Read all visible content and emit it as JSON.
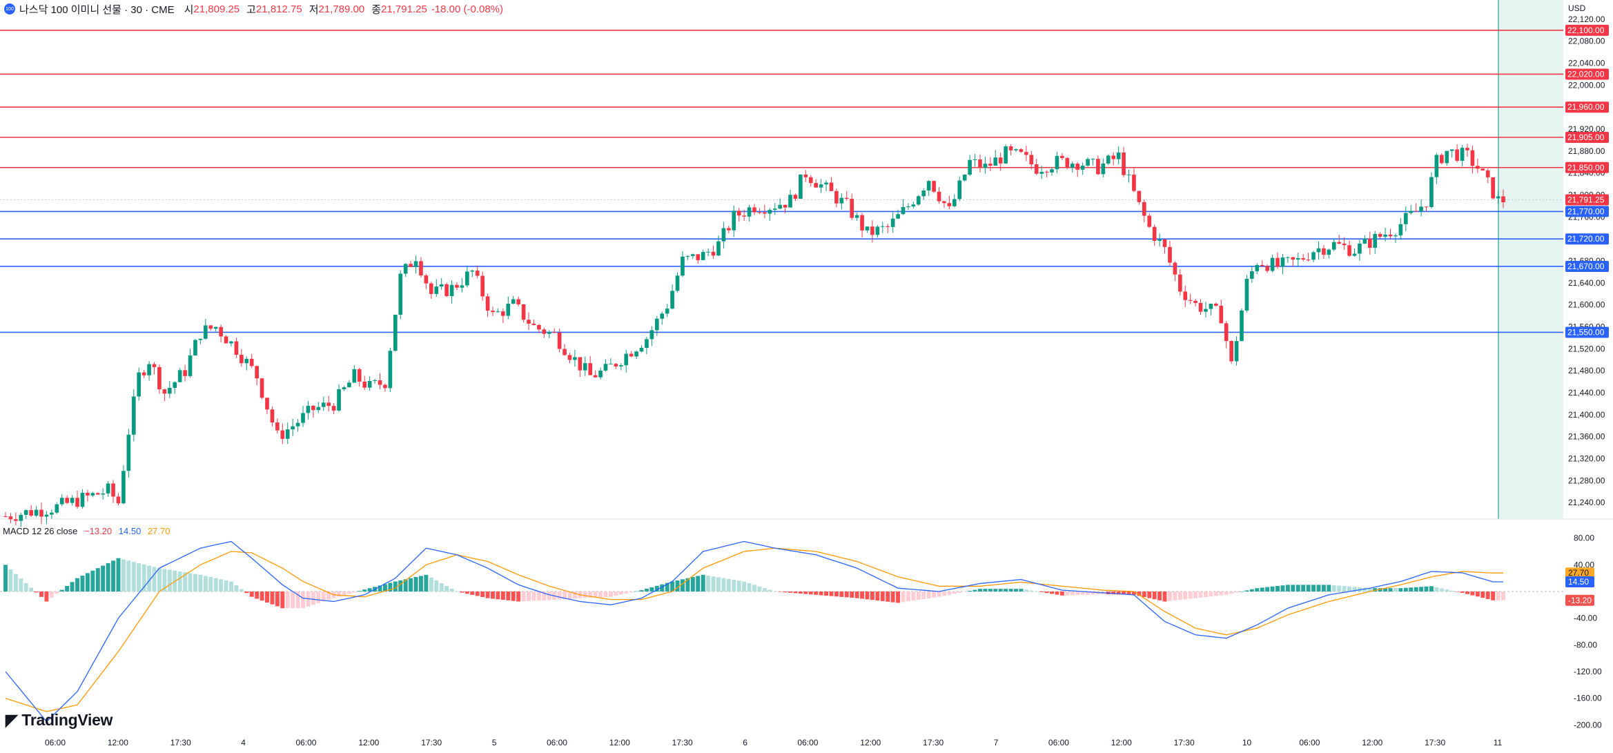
{
  "header": {
    "logo_text": "100",
    "symbol": "나스닥 100 이미니 선물 · 30 · CME",
    "open_label": "시",
    "open": "21,809.25",
    "high_label": "고",
    "high": "21,812.75",
    "low_label": "저",
    "low": "21,789.00",
    "close_label": "종",
    "close": "21,791.25",
    "change": "-18.00 (-0.08%)"
  },
  "macd_header": {
    "label": "MACD 12 26 close",
    "hist": "−13.20",
    "macd": "14.50",
    "signal": "27.70"
  },
  "currency": "USD",
  "brand": "TradingView",
  "colors": {
    "up": "#089981",
    "down": "#f23645",
    "resistance": "#f23645",
    "support": "#2962ff",
    "macd_line": "#2962ff",
    "signal_line": "#ff9800",
    "highlight": "#e6f4f1"
  },
  "chart_data": [
    {
      "type": "candlestick",
      "timeframe": "30",
      "price_axis": {
        "ylim": [
          21210,
          22140
        ],
        "ticks": [
          21240,
          21280,
          21320,
          21360,
          21400,
          21440,
          21480,
          21520,
          21560,
          21600,
          21640,
          21680,
          21720,
          21760,
          21800,
          21840,
          21880,
          21920,
          21960,
          22000,
          22040,
          22080,
          22120
        ]
      },
      "time_axis": {
        "ticks": [
          "06:00",
          "12:00",
          "17:30",
          "4",
          "06:00",
          "12:00",
          "17:30",
          "5",
          "06:00",
          "12:00",
          "17:30",
          "6",
          "06:00",
          "12:00",
          "17:30",
          "7",
          "06:00",
          "12:00",
          "17:30",
          "10",
          "06:00",
          "12:00",
          "17:30",
          "11"
        ]
      },
      "last_price": 21791.25,
      "resistance_levels": [
        22100.0,
        22020.0,
        21960.0,
        21905.0,
        21850.0
      ],
      "support_levels": [
        21770.0,
        21720.0,
        21670.0,
        21550.0
      ],
      "level_labels": {
        "22100": "22,100.00",
        "22020": "22,020.00",
        "21960": "21,960.00",
        "21905": "21,905.00",
        "21850": "21,850.00",
        "21770": "21,770.00",
        "21720": "21,720.00",
        "21670": "21,670.00",
        "21550": "21,550.00",
        "last": "21,791.25"
      },
      "close_path": [
        [
          0,
          21215
        ],
        [
          10,
          21232
        ],
        [
          20,
          21262
        ],
        [
          22,
          21240
        ],
        [
          24,
          21370
        ],
        [
          26,
          21470
        ],
        [
          28,
          21500
        ],
        [
          31,
          21440
        ],
        [
          35,
          21480
        ],
        [
          38,
          21550
        ],
        [
          41,
          21560
        ],
        [
          45,
          21520
        ],
        [
          49,
          21470
        ],
        [
          53,
          21360
        ],
        [
          56,
          21380
        ],
        [
          60,
          21410
        ],
        [
          64,
          21420
        ],
        [
          68,
          21470
        ],
        [
          71,
          21450
        ],
        [
          74,
          21460
        ],
        [
          77,
          21650
        ],
        [
          80,
          21690
        ],
        [
          83,
          21620
        ],
        [
          87,
          21630
        ],
        [
          91,
          21660
        ],
        [
          95,
          21580
        ],
        [
          99,
          21600
        ],
        [
          103,
          21560
        ],
        [
          107,
          21545
        ],
        [
          111,
          21500
        ],
        [
          114,
          21470
        ],
        [
          117,
          21480
        ],
        [
          121,
          21510
        ],
        [
          125,
          21540
        ],
        [
          129,
          21600
        ],
        [
          132,
          21680
        ],
        [
          136,
          21690
        ],
        [
          139,
          21710
        ],
        [
          142,
          21760
        ],
        [
          146,
          21780
        ],
        [
          149,
          21780
        ],
        [
          153,
          21790
        ],
        [
          156,
          21840
        ],
        [
          160,
          21810
        ],
        [
          164,
          21780
        ],
        [
          168,
          21730
        ],
        [
          172,
          21740
        ],
        [
          176,
          21780
        ],
        [
          180,
          21830
        ],
        [
          184,
          21770
        ],
        [
          188,
          21860
        ],
        [
          191,
          21850
        ],
        [
          195,
          21875
        ],
        [
          198,
          21870
        ],
        [
          201,
          21850
        ],
        [
          205,
          21860
        ],
        [
          209,
          21860
        ],
        [
          213,
          21850
        ],
        [
          217,
          21870
        ],
        [
          221,
          21780
        ],
        [
          223,
          21740
        ],
        [
          226,
          21700
        ],
        [
          229,
          21630
        ],
        [
          232,
          21600
        ],
        [
          235,
          21590
        ],
        [
          237,
          21580
        ],
        [
          239,
          21490
        ],
        [
          242,
          21640
        ],
        [
          244,
          21680
        ],
        [
          248,
          21670
        ],
        [
          252,
          21680
        ],
        [
          255,
          21700
        ],
        [
          259,
          21710
        ],
        [
          263,
          21700
        ],
        [
          267,
          21720
        ],
        [
          271,
          21740
        ],
        [
          275,
          21770
        ],
        [
          277,
          21790
        ],
        [
          279,
          21860
        ],
        [
          281,
          21880
        ],
        [
          285,
          21870
        ],
        [
          287,
          21850
        ],
        [
          289,
          21820
        ],
        [
          291,
          21790
        ],
        [
          292,
          21791
        ]
      ],
      "candle_count": 293
    },
    {
      "type": "line",
      "name": "MACD 12 26 close",
      "ylim": [
        -210,
        90
      ],
      "ticks": [
        80,
        40,
        -40,
        -80,
        -120,
        -160,
        -200
      ],
      "current": {
        "histogram": -13.2,
        "macd": 14.5,
        "signal": 27.7
      },
      "macd_path": [
        [
          0,
          -120
        ],
        [
          8,
          -195
        ],
        [
          14,
          -150
        ],
        [
          22,
          -40
        ],
        [
          30,
          35
        ],
        [
          38,
          65
        ],
        [
          44,
          75
        ],
        [
          48,
          50
        ],
        [
          54,
          10
        ],
        [
          58,
          -10
        ],
        [
          64,
          -15
        ],
        [
          70,
          -5
        ],
        [
          76,
          20
        ],
        [
          82,
          65
        ],
        [
          88,
          55
        ],
        [
          94,
          35
        ],
        [
          100,
          10
        ],
        [
          106,
          -5
        ],
        [
          112,
          -15
        ],
        [
          118,
          -20
        ],
        [
          124,
          -10
        ],
        [
          130,
          15
        ],
        [
          136,
          60
        ],
        [
          144,
          75
        ],
        [
          150,
          65
        ],
        [
          158,
          55
        ],
        [
          166,
          35
        ],
        [
          174,
          5
        ],
        [
          182,
          0
        ],
        [
          190,
          12
        ],
        [
          198,
          18
        ],
        [
          206,
          2
        ],
        [
          214,
          -2
        ],
        [
          220,
          -5
        ],
        [
          226,
          -45
        ],
        [
          232,
          -65
        ],
        [
          238,
          -70
        ],
        [
          244,
          -50
        ],
        [
          250,
          -25
        ],
        [
          258,
          -5
        ],
        [
          266,
          5
        ],
        [
          272,
          15
        ],
        [
          278,
          30
        ],
        [
          284,
          28
        ],
        [
          290,
          14.5
        ]
      ],
      "signal_path": [
        [
          0,
          -160
        ],
        [
          8,
          -180
        ],
        [
          14,
          -170
        ],
        [
          22,
          -90
        ],
        [
          30,
          0
        ],
        [
          38,
          40
        ],
        [
          44,
          60
        ],
        [
          48,
          58
        ],
        [
          54,
          35
        ],
        [
          58,
          15
        ],
        [
          64,
          -5
        ],
        [
          70,
          -8
        ],
        [
          76,
          5
        ],
        [
          82,
          40
        ],
        [
          88,
          55
        ],
        [
          94,
          45
        ],
        [
          100,
          25
        ],
        [
          106,
          8
        ],
        [
          112,
          -5
        ],
        [
          118,
          -12
        ],
        [
          124,
          -12
        ],
        [
          130,
          0
        ],
        [
          136,
          35
        ],
        [
          144,
          60
        ],
        [
          150,
          65
        ],
        [
          158,
          60
        ],
        [
          166,
          45
        ],
        [
          174,
          22
        ],
        [
          182,
          8
        ],
        [
          190,
          8
        ],
        [
          198,
          14
        ],
        [
          206,
          8
        ],
        [
          214,
          2
        ],
        [
          220,
          0
        ],
        [
          226,
          -30
        ],
        [
          232,
          -55
        ],
        [
          238,
          -65
        ],
        [
          244,
          -55
        ],
        [
          250,
          -35
        ],
        [
          258,
          -15
        ],
        [
          266,
          0
        ],
        [
          272,
          10
        ],
        [
          278,
          22
        ],
        [
          284,
          30
        ],
        [
          290,
          27.7
        ]
      ]
    }
  ]
}
